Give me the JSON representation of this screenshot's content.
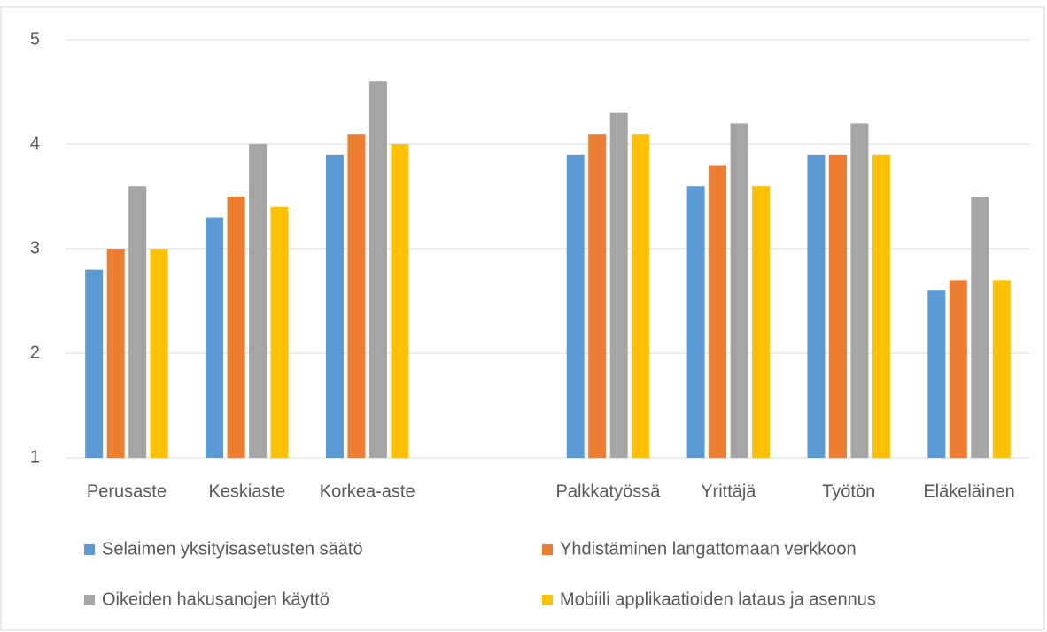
{
  "chart_data": {
    "type": "bar",
    "categories": [
      "Perusaste",
      "Keskiaste",
      "Korkea-aste",
      null,
      "Palkkatyössä",
      "Yrittäjä",
      "Työtön",
      "Eläkeläinen"
    ],
    "series": [
      {
        "name": "Selaimen yksityisasetusten säätö",
        "color": "#5b9bd5",
        "values": [
          2.8,
          3.3,
          3.9,
          null,
          3.9,
          3.6,
          3.9,
          2.6
        ]
      },
      {
        "name": "Yhdistäminen langattomaan verkkoon",
        "color": "#ed7d31",
        "values": [
          3.0,
          3.5,
          4.1,
          null,
          4.1,
          3.8,
          3.9,
          2.7
        ]
      },
      {
        "name": "Oikeiden hakusanojen käyttö",
        "color": "#a5a5a5",
        "values": [
          3.6,
          4.0,
          4.6,
          null,
          4.3,
          4.2,
          4.2,
          3.5
        ]
      },
      {
        "name": "Mobiili applikaatioiden lataus ja asennus",
        "color": "#ffc000",
        "values": [
          3.0,
          3.4,
          4.0,
          null,
          4.1,
          3.6,
          3.9,
          2.7
        ]
      }
    ],
    "ylim": [
      1,
      5
    ],
    "yticks": [
      1,
      2,
      3,
      4,
      5
    ],
    "grid": true,
    "legend": "bottom"
  }
}
